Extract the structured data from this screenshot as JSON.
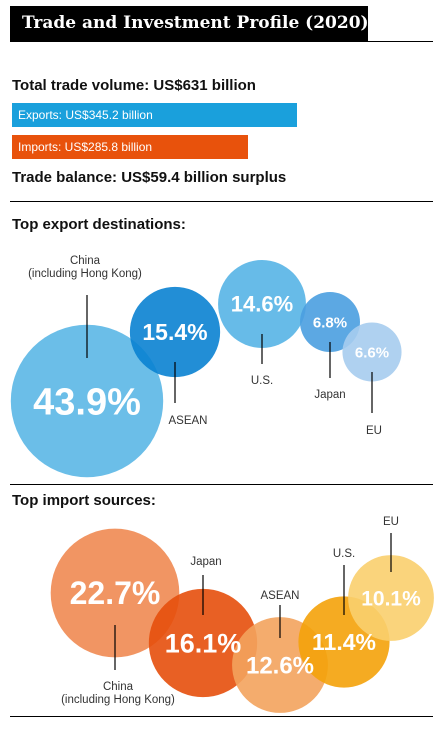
{
  "title": "Trade and Investment Profile (2020)",
  "summary": {
    "total_trade": "Total trade volume: US$631 billion",
    "exports_label": "Exports: US$345.2 billion",
    "imports_label": "Imports: US$285.8 billion",
    "balance": "Trade balance: US$59.4 billion surplus",
    "exports_value": 345.2,
    "imports_value": 285.8,
    "unit": "US$ billion"
  },
  "colors": {
    "exports_bar": "#1aa0dc",
    "imports_bar": "#e8520c",
    "export_bubbles": [
      "#5bb7e5",
      "#0a82d2",
      "#56b4e6",
      "#4a9fe0",
      "#a6ccee"
    ],
    "import_bubbles": [
      "#ef8a52",
      "#e64f0c",
      "#f3a35d",
      "#f4a20a",
      "#f9cf6e"
    ]
  },
  "chart_data": [
    {
      "type": "bubble",
      "title": "Top export destinations:",
      "categories": [
        "China\n(including Hong Kong)",
        "ASEAN",
        "U.S.",
        "Japan",
        "EU"
      ],
      "values": [
        43.9,
        15.4,
        14.6,
        6.8,
        6.6
      ],
      "value_labels": [
        "43.9%",
        "15.4%",
        "14.6%",
        "6.8%",
        "6.6%"
      ],
      "unit": "%"
    },
    {
      "type": "bubble",
      "title": "Top import sources:",
      "categories": [
        "China\n(including Hong Kong)",
        "Japan",
        "ASEAN",
        "U.S.",
        "EU"
      ],
      "values": [
        22.7,
        16.1,
        12.6,
        11.4,
        10.1
      ],
      "value_labels": [
        "22.7%",
        "16.1%",
        "12.6%",
        "11.4%",
        "10.1%"
      ],
      "unit": "%"
    }
  ]
}
